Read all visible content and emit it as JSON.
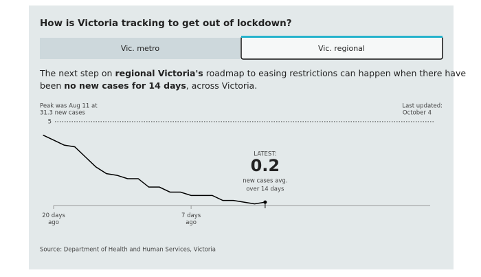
{
  "header": {
    "title": "How is Victoria tracking to get out of lockdown?"
  },
  "tabs": [
    "Vic. metro",
    "Vic. regional"
  ],
  "description": {
    "line1": [
      "The next step on ",
      "regional Victoria's",
      " roadmap to easing restrictions can happen when there have"
    ],
    "line2": [
      "been ",
      "no new cases for 14 days",
      ", across Victoria."
    ]
  },
  "chart_data": {
    "type": "line",
    "peak_note": [
      "Peak was Aug 11 at",
      "31.3 new cases"
    ],
    "updated_note": [
      "Last updated:",
      "October 4"
    ],
    "latest_heading": "LATEST:",
    "latest_caption": [
      "new cases avg.",
      "over 14 days"
    ],
    "source": "Source: Department of Health and Human Services, Victoria",
    "x": [
      21,
      20,
      19,
      18,
      17,
      16,
      15,
      14,
      13,
      12,
      11,
      10,
      9,
      8,
      7,
      6,
      5,
      4,
      3,
      2,
      1,
      0
    ],
    "series": [
      {
        "name": "new cases avg. over 14 days",
        "color": "#000000",
        "values": [
          4.2,
          3.9,
          3.6,
          3.5,
          2.9,
          2.3,
          1.9,
          1.8,
          1.6,
          1.6,
          1.1,
          1.1,
          0.8,
          0.8,
          0.6,
          0.6,
          0.6,
          0.3,
          0.3,
          0.2,
          0.1,
          0.2
        ]
      }
    ],
    "xlim": [
      21.3,
      -15.6
    ],
    "xticks": [
      {
        "value": 20,
        "label": "20 days ago"
      },
      {
        "value": 7,
        "label": "7 days ago"
      }
    ],
    "ylim": [
      0,
      5
    ],
    "yticks": [
      5
    ],
    "grid": true
  }
}
